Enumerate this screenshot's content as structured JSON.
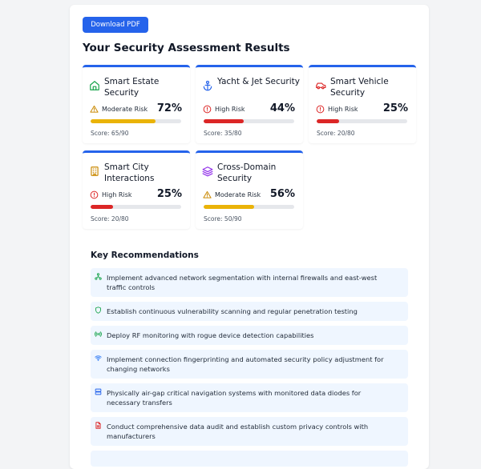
{
  "toolbar": {
    "download_label": "Download PDF"
  },
  "heading": "Your Security Assessment Results",
  "colors": {
    "accent": "#2563eb",
    "moderate": "#eab308",
    "high": "#dc2626",
    "track": "#e5e7eb",
    "rec_bg": "#eff6ff"
  },
  "cards": [
    {
      "title": "Smart Estate Security",
      "icon": "house-icon",
      "icon_color": "#16a34a",
      "risk": "Moderate Risk",
      "risk_icon": "warning-triangle-icon",
      "percent": "72%",
      "progress": 0.72,
      "score": "Score: 65/90"
    },
    {
      "title": "Yacht & Jet Security",
      "icon": "anchor-icon",
      "icon_color": "#2563eb",
      "risk": "High Risk",
      "risk_icon": "alert-circle-icon",
      "percent": "44%",
      "progress": 0.44,
      "score": "Score: 35/80"
    },
    {
      "title": "Smart Vehicle Security",
      "icon": "car-icon",
      "icon_color": "#dc2626",
      "risk": "High Risk",
      "risk_icon": "alert-circle-icon",
      "percent": "25%",
      "progress": 0.25,
      "score": "Score: 20/80"
    },
    {
      "title": "Smart City Interactions",
      "icon": "building-icon",
      "icon_color": "#ca8a04",
      "risk": "High Risk",
      "risk_icon": "alert-circle-icon",
      "percent": "25%",
      "progress": 0.25,
      "score": "Score: 20/80"
    },
    {
      "title": "Cross-Domain Security",
      "icon": "layers-icon",
      "icon_color": "#9333ea",
      "risk": "Moderate Risk",
      "risk_icon": "warning-triangle-icon",
      "percent": "56%",
      "progress": 0.56,
      "score": "Score: 50/90"
    }
  ],
  "recommendations": {
    "heading": "Key Recommendations",
    "items": [
      {
        "icon": "network-icon",
        "text": "Implement advanced network segmentation with internal firewalls and east-west traffic controls"
      },
      {
        "icon": "shield-icon",
        "text": "Establish continuous vulnerability scanning and regular penetration testing"
      },
      {
        "icon": "radio-icon",
        "text": "Deploy RF monitoring with rogue device detection capabilities"
      },
      {
        "icon": "wifi-icon",
        "text": "Implement connection fingerprinting and automated security policy adjustment for changing networks"
      },
      {
        "icon": "server-icon",
        "text": "Physically air-gap critical navigation systems with monitored data diodes for necessary transfers"
      },
      {
        "icon": "document-icon",
        "text": "Conduct comprehensive data audit and establish custom privacy controls with manufacturers"
      }
    ]
  }
}
